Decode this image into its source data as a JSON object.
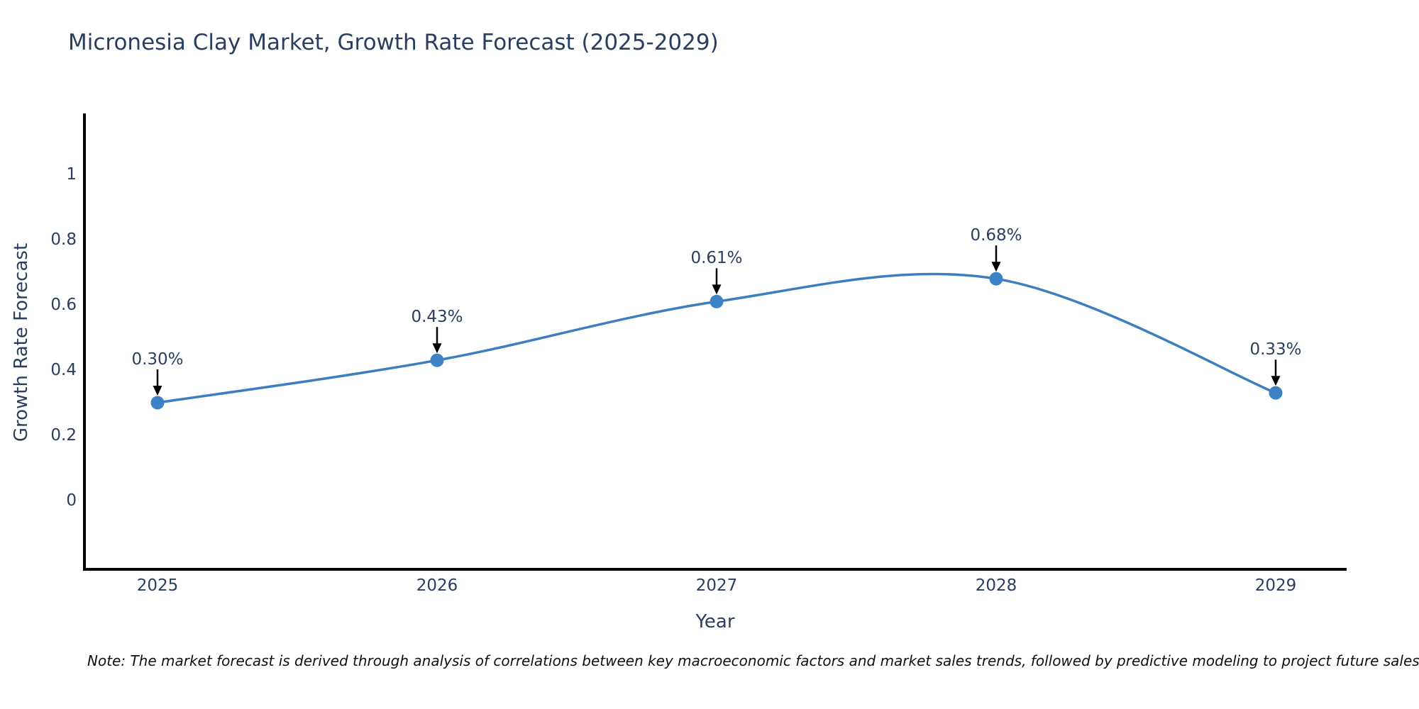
{
  "note": "Note: The market forecast is derived through analysis of correlations between key macroeconomic factors and market sales trends, followed by predictive modeling to project future sales",
  "chart_data": {
    "type": "line",
    "line_shape": "spline",
    "title": "Micronesia Clay Market, Growth Rate Forecast (2025-2029)",
    "xlabel": "Year",
    "ylabel": "Growth Rate Forecast",
    "categories": [
      "2025",
      "2026",
      "2027",
      "2028",
      "2029"
    ],
    "values": [
      0.3,
      0.43,
      0.61,
      0.68,
      0.33
    ],
    "point_labels": [
      "0.30%",
      "0.43%",
      "0.61%",
      "0.68%",
      "0.33%"
    ],
    "yticks": {
      "values": [
        0,
        0.2,
        0.4,
        0.6,
        0.8,
        1
      ],
      "labels": [
        "0",
        "0.2",
        "0.4",
        "0.6",
        "0.8",
        "1"
      ]
    },
    "ylim": [
      -0.22,
      1.2
    ],
    "grid": false,
    "legend": "none",
    "annotation_arrows": true,
    "colors": {
      "line": "#3d7ebf",
      "marker": "#3c82c4",
      "arrow": "#000000",
      "axis": "#000000",
      "text": "#2a3f5f",
      "note_text": "#111111",
      "background": "#ffffff"
    }
  }
}
